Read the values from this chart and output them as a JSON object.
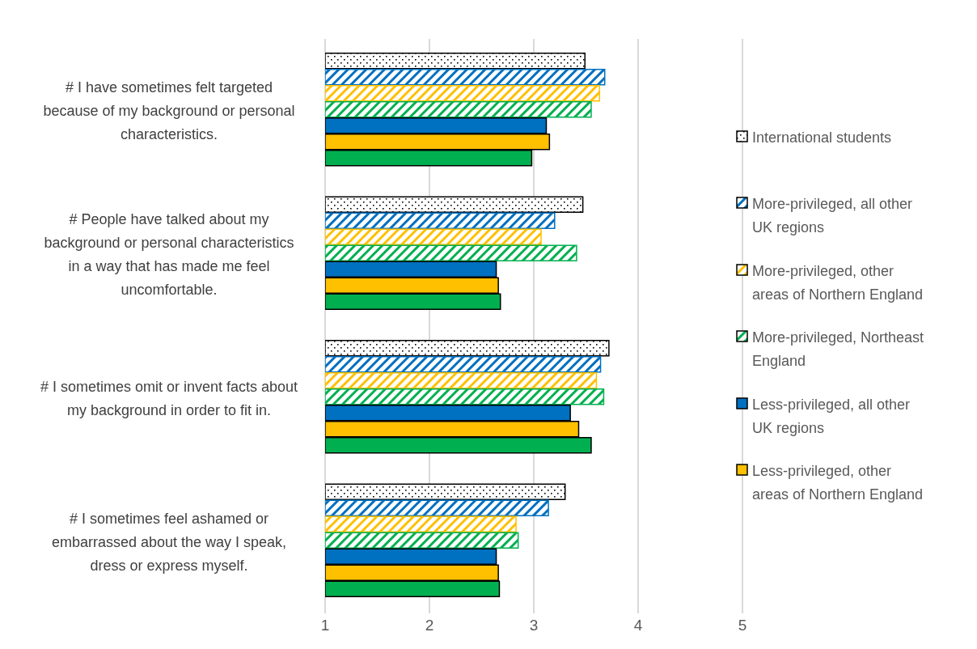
{
  "chart_data": {
    "type": "bar",
    "orientation": "horizontal",
    "categories": [
      "# I have sometimes felt targeted because of my background or personal characteristics.",
      "# People have talked about my background or personal characteristics in a way that has made me feel uncomfortable.",
      "# I sometimes omit or invent facts about my background in order to fit in.",
      "# I sometimes feel ashamed or embarrassed about the way I speak, dress or express myself."
    ],
    "series": [
      {
        "name": "International students",
        "color": "#000000",
        "values": [
          3.49,
          3.47,
          3.72,
          3.3
        ]
      },
      {
        "name": "More-privileged, all other UK regions",
        "color": "#0070c0",
        "values": [
          3.68,
          3.2,
          3.64,
          3.14
        ]
      },
      {
        "name": "More-privileged, other areas of Northern England",
        "color": "#ffc000",
        "values": [
          3.63,
          3.07,
          3.6,
          2.83
        ]
      },
      {
        "name": "More-privileged, Northeast England",
        "color": "#00b050",
        "values": [
          3.55,
          3.41,
          3.67,
          2.85
        ]
      },
      {
        "name": "Less-privileged, all other UK regions",
        "color": "#0070c0",
        "values": [
          3.12,
          2.64,
          3.35,
          2.64
        ]
      },
      {
        "name": "Less-privileged, other areas of Northern England",
        "color": "#ffc000",
        "values": [
          3.15,
          2.66,
          3.43,
          2.66
        ]
      },
      {
        "color": "#00b050",
        "values": [
          2.98,
          2.68,
          3.55,
          2.67
        ]
      }
    ],
    "xlim": [
      1,
      5
    ],
    "xticks": [
      1,
      2,
      3,
      4,
      5
    ],
    "grid": "x",
    "legend": "right"
  }
}
